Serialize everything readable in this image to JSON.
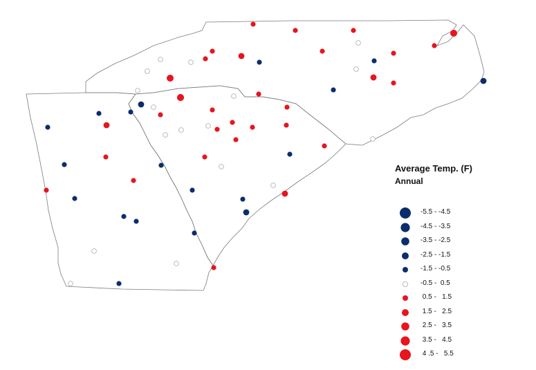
{
  "legend": {
    "title": "Average Temp. (F)",
    "subtitle": "Annual",
    "classes": [
      {
        "label": "-5.5 - -4.5",
        "color": "#0b2d6e",
        "kind": "neg",
        "size": 5
      },
      {
        "label": "-4.5 - -3.5",
        "color": "#0b2d6e",
        "kind": "neg",
        "size": 4
      },
      {
        "label": "-3.5 - -2.5",
        "color": "#0b2d6e",
        "kind": "neg",
        "size": 3
      },
      {
        "label": "-2.5 - -1.5",
        "color": "#0b2d6e",
        "kind": "neg",
        "size": 2
      },
      {
        "label": "-1.5 - -0.5",
        "color": "#0b2d6e",
        "kind": "neg",
        "size": 1
      },
      {
        "label": "-0.5 -  0.5",
        "color": "#ffffff",
        "kind": "neutral",
        "size": 1
      },
      {
        "label": " 0.5 -   1.5",
        "color": "#e8141e",
        "kind": "pos",
        "size": 1
      },
      {
        "label": " 1.5 -   2.5",
        "color": "#e8141e",
        "kind": "pos",
        "size": 2
      },
      {
        "label": " 2.5 -   3.5",
        "color": "#e8141e",
        "kind": "pos",
        "size": 3
      },
      {
        "label": " 3.5 -   4.5",
        "color": "#e8141e",
        "kind": "pos",
        "size": 4
      },
      {
        "label": " 4 .5 -   5.5",
        "color": "#e8141e",
        "kind": "pos",
        "size": 5
      }
    ]
  },
  "colors": {
    "state_outline": "#7a7a7a",
    "neutral_outline": "#a8a8a8",
    "negative": "#0b2d6e",
    "positive": "#e8141e"
  },
  "stations": [
    {
      "kind": "pos",
      "size": 1
    },
    {
      "kind": "pos",
      "size": 1
    },
    {
      "kind": "pos",
      "size": 1
    },
    {
      "kind": "pos",
      "size": 3
    },
    {
      "kind": "pos",
      "size": 1
    },
    {
      "kind": "neutral",
      "size": 1
    },
    {
      "kind": "neutral",
      "size": 1
    },
    {
      "kind": "pos",
      "size": 1
    },
    {
      "kind": "pos",
      "size": 1
    },
    {
      "kind": "pos",
      "size": 2
    },
    {
      "kind": "neg",
      "size": 1
    },
    {
      "kind": "pos",
      "size": 1
    },
    {
      "kind": "neutral",
      "size": 1
    },
    {
      "kind": "neg",
      "size": 1
    },
    {
      "kind": "pos",
      "size": 2
    },
    {
      "kind": "pos",
      "size": 1
    },
    {
      "kind": "pos",
      "size": 1
    },
    {
      "kind": "neutral",
      "size": 1
    },
    {
      "kind": "neutral",
      "size": 1
    },
    {
      "kind": "pos",
      "size": 3
    },
    {
      "kind": "neg",
      "size": 1
    },
    {
      "kind": "pos",
      "size": 1
    },
    {
      "kind": "pos",
      "size": 3
    },
    {
      "kind": "pos",
      "size": 3
    },
    {
      "kind": "neutral",
      "size": 1
    },
    {
      "kind": "neg",
      "size": 2
    },
    {
      "kind": "neg",
      "size": 1
    },
    {
      "kind": "pos",
      "size": 1
    },
    {
      "kind": "neutral",
      "size": 1
    },
    {
      "kind": "neg",
      "size": 1
    },
    {
      "kind": "pos",
      "size": 2
    },
    {
      "kind": "neutral",
      "size": 1
    },
    {
      "kind": "neutral",
      "size": 1
    },
    {
      "kind": "pos",
      "size": 1
    },
    {
      "kind": "pos",
      "size": 1
    },
    {
      "kind": "pos",
      "size": 1
    },
    {
      "kind": "pos",
      "size": 1
    },
    {
      "kind": "neutral",
      "size": 1
    },
    {
      "kind": "pos",
      "size": 1
    },
    {
      "kind": "pos",
      "size": 1
    },
    {
      "kind": "neutral",
      "size": 1
    },
    {
      "kind": "neg",
      "size": 1
    },
    {
      "kind": "pos",
      "size": 1
    },
    {
      "kind": "neutral",
      "size": 1
    },
    {
      "kind": "neg",
      "size": 1
    },
    {
      "kind": "pos",
      "size": 1
    },
    {
      "kind": "neutral",
      "size": 1
    },
    {
      "kind": "pos",
      "size": 1
    },
    {
      "kind": "neg",
      "size": 1
    },
    {
      "kind": "pos",
      "size": 1
    },
    {
      "kind": "neg",
      "size": 1
    },
    {
      "kind": "pos",
      "size": 1
    },
    {
      "kind": "neg",
      "size": 1
    },
    {
      "kind": "neg",
      "size": 1
    },
    {
      "kind": "pos",
      "size": 1
    },
    {
      "kind": "neg",
      "size": 1
    },
    {
      "kind": "pos",
      "size": 2
    },
    {
      "kind": "neg",
      "size": 1
    },
    {
      "kind": "neg",
      "size": 1
    },
    {
      "kind": "neg",
      "size": 2
    },
    {
      "kind": "neg",
      "size": 1
    },
    {
      "kind": "neg",
      "size": 1
    },
    {
      "kind": "neutral",
      "size": 1
    },
    {
      "kind": "neutral",
      "size": 1
    },
    {
      "kind": "pos",
      "size": 1
    },
    {
      "kind": "neutral",
      "size": 1
    },
    {
      "kind": "neg",
      "size": 2
    },
    {
      "kind": "neutral",
      "size": 1
    }
  ]
}
